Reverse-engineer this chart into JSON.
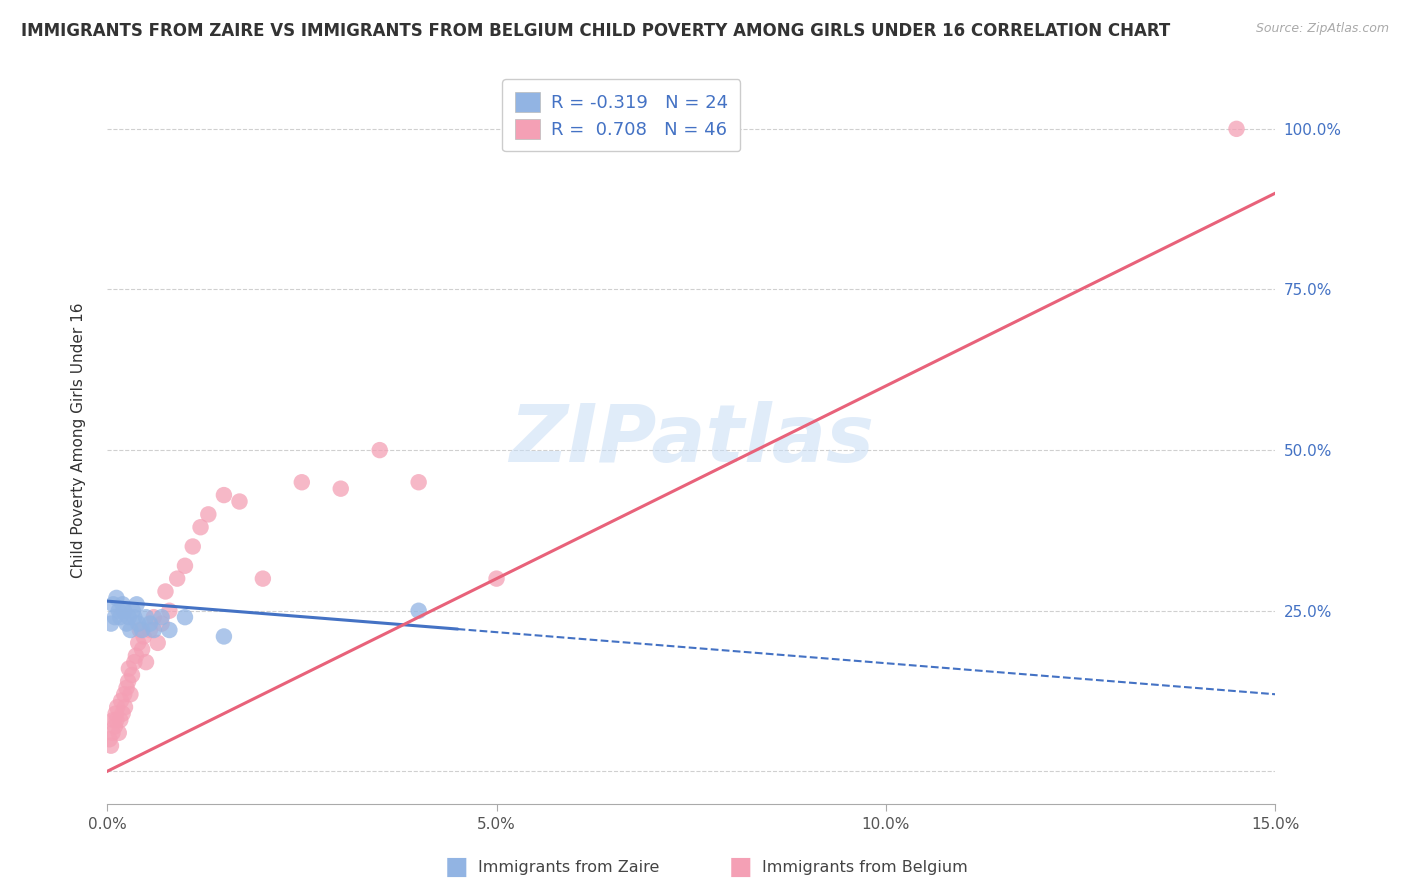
{
  "title": "IMMIGRANTS FROM ZAIRE VS IMMIGRANTS FROM BELGIUM CHILD POVERTY AMONG GIRLS UNDER 16 CORRELATION CHART",
  "source": "Source: ZipAtlas.com",
  "ylabel": "Child Poverty Among Girls Under 16",
  "xlim": [
    0.0,
    15.0
  ],
  "ylim": [
    -5.0,
    108.0
  ],
  "xticks": [
    0.0,
    5.0,
    10.0,
    15.0
  ],
  "xtick_labels": [
    "0.0%",
    "5.0%",
    "10.0%",
    "15.0%"
  ],
  "yticks": [
    0,
    25,
    50,
    75,
    100
  ],
  "ytick_labels_right": [
    "",
    "25.0%",
    "50.0%",
    "75.0%",
    "100.0%"
  ],
  "zaire_color": "#92b4e3",
  "belgium_color": "#f4a0b5",
  "zaire_line_color": "#4472c4",
  "belgium_line_color": "#e8627a",
  "zaire_R": -0.319,
  "zaire_N": 24,
  "belgium_R": 0.708,
  "belgium_N": 46,
  "background_color": "#ffffff",
  "grid_color": "#d0d0d0",
  "watermark": "ZIPatlas",
  "legend_label_zaire": "Immigrants from Zaire",
  "legend_label_belgium": "Immigrants from Belgium",
  "zaire_scatter_x": [
    0.05,
    0.08,
    0.1,
    0.12,
    0.15,
    0.17,
    0.2,
    0.22,
    0.25,
    0.28,
    0.3,
    0.33,
    0.35,
    0.38,
    0.4,
    0.45,
    0.5,
    0.55,
    0.6,
    0.7,
    0.8,
    1.0,
    1.5,
    4.0
  ],
  "zaire_scatter_y": [
    23,
    26,
    24,
    27,
    25,
    24,
    26,
    25,
    23,
    24,
    22,
    25,
    24,
    26,
    23,
    22,
    24,
    23,
    22,
    24,
    22,
    24,
    21,
    25
  ],
  "belgium_scatter_x": [
    0.03,
    0.05,
    0.07,
    0.08,
    0.1,
    0.11,
    0.12,
    0.13,
    0.15,
    0.17,
    0.18,
    0.2,
    0.22,
    0.23,
    0.25,
    0.27,
    0.28,
    0.3,
    0.32,
    0.35,
    0.37,
    0.4,
    0.42,
    0.45,
    0.47,
    0.5,
    0.55,
    0.6,
    0.65,
    0.7,
    0.75,
    0.8,
    0.9,
    1.0,
    1.1,
    1.2,
    1.3,
    1.5,
    1.7,
    2.0,
    2.5,
    3.0,
    3.5,
    4.0,
    5.0,
    14.5
  ],
  "belgium_scatter_y": [
    5,
    4,
    6,
    8,
    7,
    9,
    8,
    10,
    6,
    8,
    11,
    9,
    12,
    10,
    13,
    14,
    16,
    12,
    15,
    17,
    18,
    20,
    22,
    19,
    21,
    17,
    22,
    24,
    20,
    23,
    28,
    25,
    30,
    32,
    35,
    38,
    40,
    43,
    42,
    30,
    45,
    44,
    50,
    45,
    30,
    100
  ],
  "zaire_line_x0": 0.0,
  "zaire_line_y0": 26.5,
  "zaire_line_x1": 15.0,
  "zaire_line_y1": 12.0,
  "zaire_solid_end": 4.5,
  "belgium_line_x0": 0.0,
  "belgium_line_y0": 0.0,
  "belgium_line_x1": 15.0,
  "belgium_line_y1": 90.0
}
